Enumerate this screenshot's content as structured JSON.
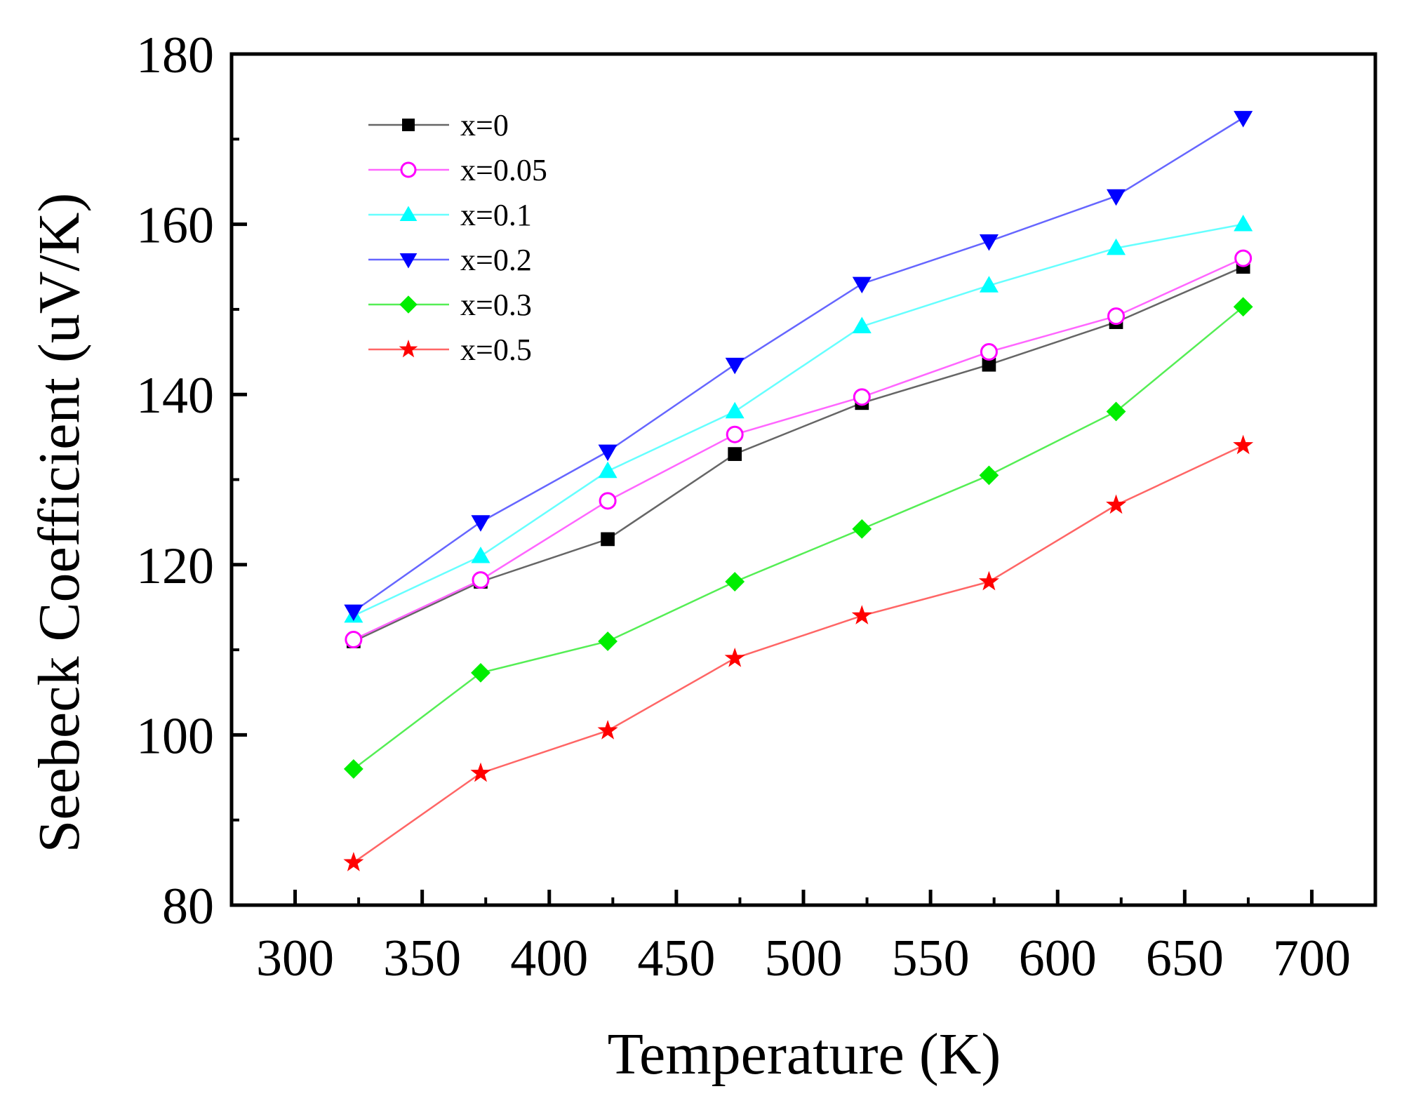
{
  "chart_data": {
    "type": "line",
    "title": "",
    "xlabel": "Temperature (K)",
    "ylabel": "Seebeck Coefficient (uV/K)",
    "xlim": [
      275,
      725
    ],
    "ylim": [
      80,
      180
    ],
    "xticks": [
      300,
      350,
      400,
      450,
      500,
      550,
      600,
      650,
      700
    ],
    "yticks": [
      80,
      100,
      120,
      140,
      160,
      180
    ],
    "x": [
      323,
      373,
      423,
      473,
      523,
      573,
      623,
      673
    ],
    "legend_position": "top-left",
    "grid": false,
    "series": [
      {
        "name": "x=0",
        "color": "#000000",
        "line_color": "#666666",
        "marker": "square",
        "filled": true,
        "values": [
          111,
          118,
          123,
          133,
          139,
          143.5,
          148.5,
          155
        ]
      },
      {
        "name": "x=0.05",
        "color": "#ff00ff",
        "line_color": "#ff66ff",
        "marker": "circle",
        "filled": false,
        "values": [
          111.2,
          118.2,
          127.5,
          135.3,
          139.7,
          145,
          149.2,
          156
        ]
      },
      {
        "name": "x=0.1",
        "color": "#00ffff",
        "line_color": "#66ffff",
        "marker": "triangle-up",
        "filled": true,
        "values": [
          114,
          121,
          131,
          138,
          148,
          152.8,
          157.2,
          160
        ]
      },
      {
        "name": "x=0.2",
        "color": "#0000ff",
        "line_color": "#6666ff",
        "marker": "triangle-down",
        "filled": true,
        "values": [
          114.5,
          125,
          133.3,
          143.5,
          153,
          158,
          163.3,
          172.5
        ]
      },
      {
        "name": "x=0.3",
        "color": "#00ee00",
        "line_color": "#55ee55",
        "marker": "diamond",
        "filled": true,
        "values": [
          96,
          107.3,
          111,
          118,
          124.2,
          130.5,
          138,
          150.3
        ]
      },
      {
        "name": "x=0.5",
        "color": "#ff0000",
        "line_color": "#ff6666",
        "marker": "star",
        "filled": true,
        "values": [
          85,
          95.5,
          100.5,
          109,
          114,
          118,
          127,
          134
        ]
      }
    ]
  }
}
